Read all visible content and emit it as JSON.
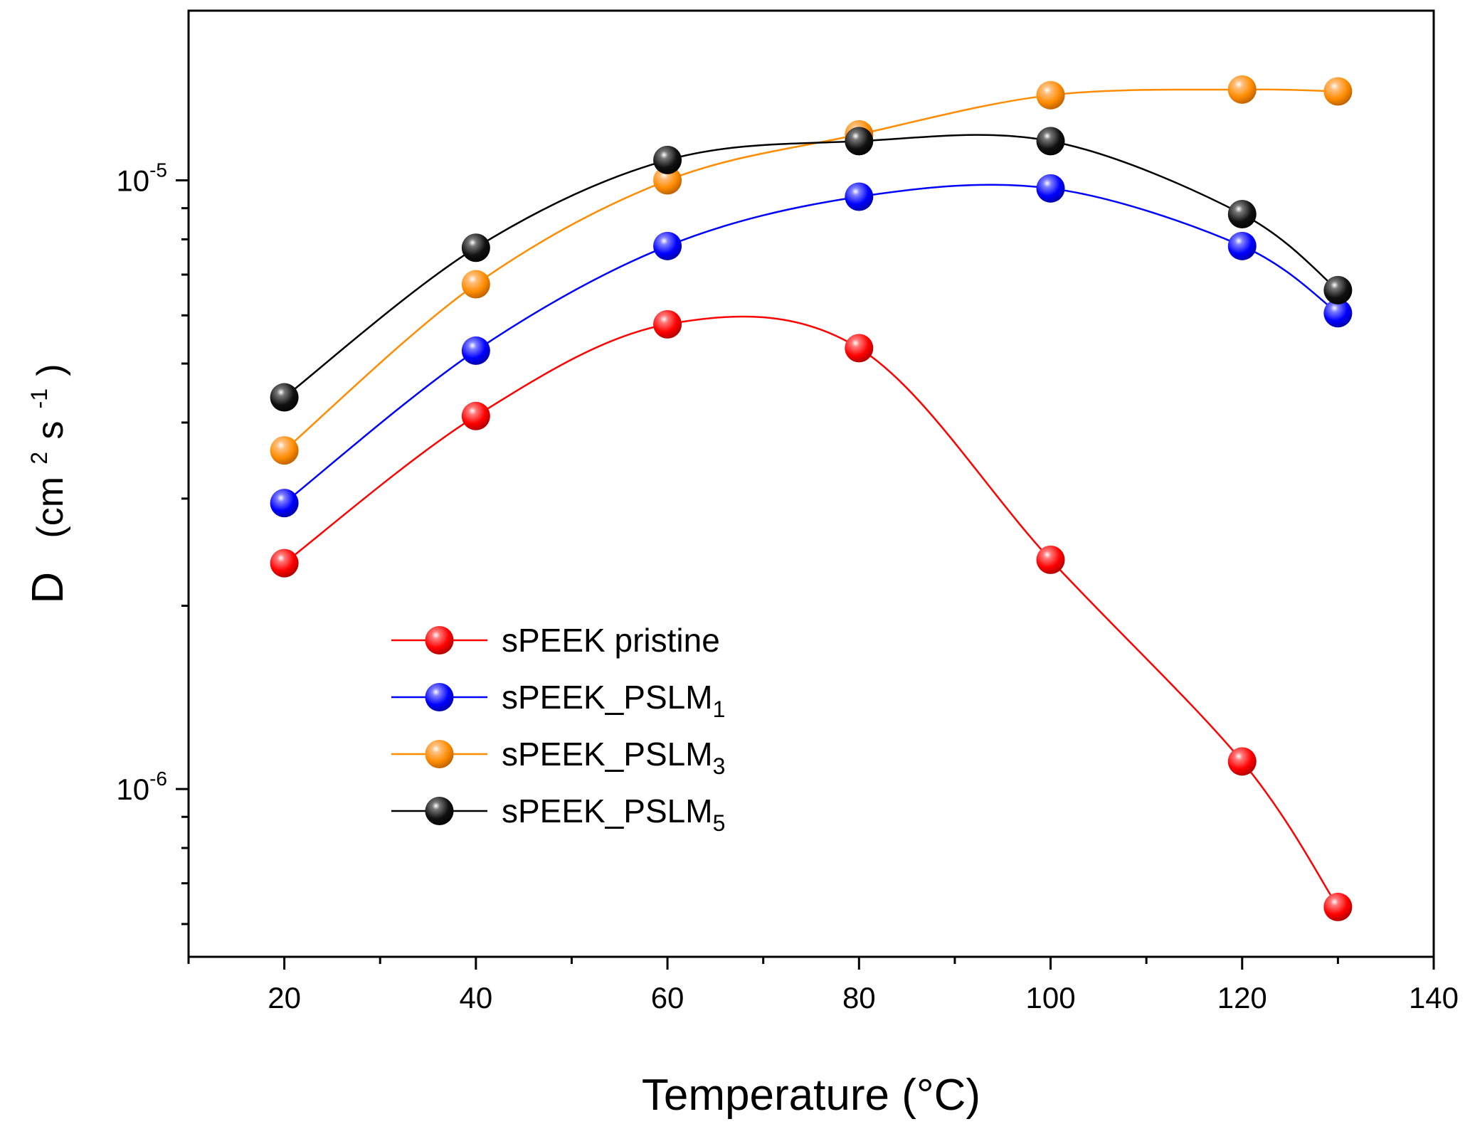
{
  "chart_data": {
    "type": "line",
    "title": "",
    "xlabel": "Temperature (°C)",
    "ylabel_main": "D",
    "ylabel_unit_prefix": "(cm",
    "ylabel_unit_exp1": "2",
    "ylabel_unit_mid": " s",
    "ylabel_unit_exp2": "-1",
    "ylabel_unit_suffix": ")",
    "x_scale": "linear",
    "y_scale": "log",
    "xlim": [
      10,
      140
    ],
    "ylim": [
      5.3e-07,
      1.9e-05
    ],
    "x_ticks": [
      20,
      40,
      60,
      80,
      100,
      120,
      140
    ],
    "y_major_ticks": [
      {
        "base": "10",
        "exp": "-5",
        "value": 1e-05
      },
      {
        "base": "10",
        "exp": "-6",
        "value": 1e-06
      }
    ],
    "y_minor_ticks": [
      6e-07,
      7e-07,
      8e-07,
      9e-07,
      2e-06,
      3e-06,
      4e-06,
      5e-06,
      6e-06,
      7e-06,
      8e-06,
      9e-06
    ],
    "legend_position": "lower-left",
    "x": [
      20,
      40,
      60,
      80,
      100,
      120,
      130
    ],
    "series": [
      {
        "name": "sPEEK pristine",
        "name_sub": "",
        "color": "#ff0000",
        "values": [
          2.35e-06,
          4.1e-06,
          5.8e-06,
          5.3e-06,
          2.38e-06,
          1.11e-06,
          6.4e-07
        ]
      },
      {
        "name": "sPEEK_PSLM",
        "name_sub": "1",
        "color": "#0000ff",
        "values": [
          2.95e-06,
          5.25e-06,
          7.8e-06,
          9.4e-06,
          9.7e-06,
          7.8e-06,
          6.05e-06
        ]
      },
      {
        "name": "sPEEK_PSLM",
        "name_sub": "3",
        "color": "#ff8c00",
        "values": [
          3.6e-06,
          6.75e-06,
          1e-05,
          1.19e-05,
          1.38e-05,
          1.41e-05,
          1.4e-05
        ]
      },
      {
        "name": "sPEEK_PSLM",
        "name_sub": "5",
        "color": "#000000",
        "values": [
          4.4e-06,
          7.75e-06,
          1.08e-05,
          1.16e-05,
          1.16e-05,
          8.8e-06,
          6.6e-06
        ]
      }
    ]
  }
}
